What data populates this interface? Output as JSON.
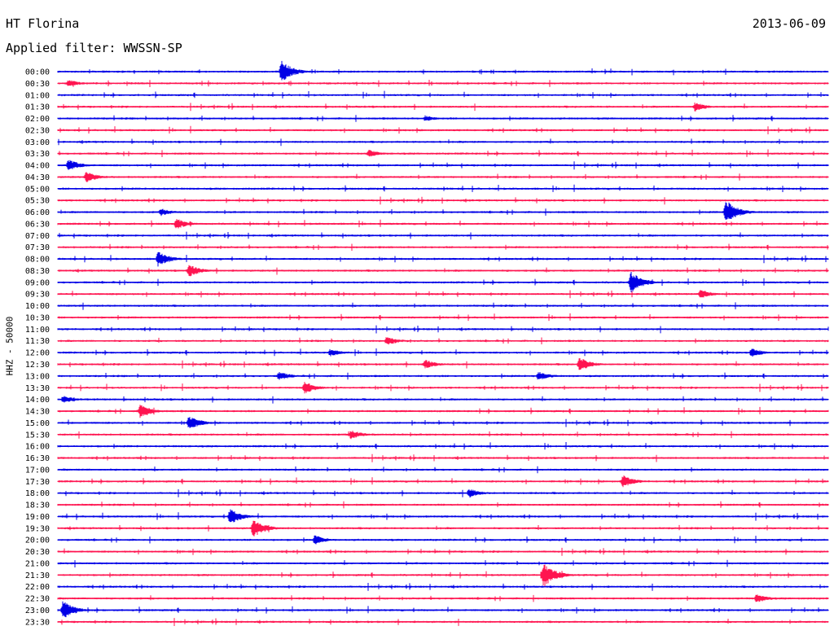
{
  "header": {
    "station": "HT Florina",
    "date": "2013-06-09",
    "filter": "Applied filter: WWSSN-SP"
  },
  "chart_data": {
    "type": "line",
    "title": "HT Florina",
    "ylabel": "HHZ - 50000",
    "row_labels": [
      "00:00",
      "00:30",
      "01:00",
      "01:30",
      "02:00",
      "02:30",
      "03:00",
      "03:30",
      "04:00",
      "04:30",
      "05:00",
      "05:30",
      "06:00",
      "06:30",
      "07:00",
      "07:30",
      "08:00",
      "08:30",
      "09:00",
      "09:30",
      "10:00",
      "10:30",
      "11:00",
      "11:30",
      "12:00",
      "12:30",
      "13:00",
      "13:30",
      "14:00",
      "14:30",
      "15:00",
      "15:30",
      "16:00",
      "16:30",
      "17:00",
      "17:30",
      "18:00",
      "18:30",
      "19:00",
      "19:30",
      "20:00",
      "20:30",
      "21:00",
      "21:30",
      "22:00",
      "22:30",
      "23:00",
      "23:30"
    ],
    "minutes_per_row": 30,
    "colors": [
      "#0000e6",
      "#ff1450"
    ],
    "grid": false,
    "legend": "none",
    "events": [
      {
        "row": 0,
        "minute": 8.7,
        "amplitude": 14
      },
      {
        "row": 1,
        "minute": 0.4,
        "amplitude": 5
      },
      {
        "row": 3,
        "minute": 24.8,
        "amplitude": 6
      },
      {
        "row": 4,
        "minute": 14.3,
        "amplitude": 4
      },
      {
        "row": 7,
        "minute": 12.1,
        "amplitude": 5
      },
      {
        "row": 8,
        "minute": 0.4,
        "amplitude": 8
      },
      {
        "row": 9,
        "minute": 1.1,
        "amplitude": 7
      },
      {
        "row": 12,
        "minute": 4.0,
        "amplitude": 5
      },
      {
        "row": 12,
        "minute": 26.0,
        "amplitude": 16
      },
      {
        "row": 13,
        "minute": 4.6,
        "amplitude": 7
      },
      {
        "row": 16,
        "minute": 3.9,
        "amplitude": 10
      },
      {
        "row": 17,
        "minute": 5.1,
        "amplitude": 8
      },
      {
        "row": 18,
        "minute": 22.3,
        "amplitude": 14
      },
      {
        "row": 19,
        "minute": 25.0,
        "amplitude": 6
      },
      {
        "row": 23,
        "minute": 12.8,
        "amplitude": 6
      },
      {
        "row": 24,
        "minute": 10.6,
        "amplitude": 5
      },
      {
        "row": 24,
        "minute": 27.0,
        "amplitude": 6
      },
      {
        "row": 25,
        "minute": 14.3,
        "amplitude": 6
      },
      {
        "row": 25,
        "minute": 20.3,
        "amplitude": 9
      },
      {
        "row": 26,
        "minute": 8.6,
        "amplitude": 6
      },
      {
        "row": 26,
        "minute": 18.7,
        "amplitude": 6
      },
      {
        "row": 27,
        "minute": 9.6,
        "amplitude": 8
      },
      {
        "row": 28,
        "minute": 0.2,
        "amplitude": 5
      },
      {
        "row": 29,
        "minute": 3.2,
        "amplitude": 9
      },
      {
        "row": 30,
        "minute": 5.1,
        "amplitude": 9
      },
      {
        "row": 31,
        "minute": 11.4,
        "amplitude": 6
      },
      {
        "row": 35,
        "minute": 22.0,
        "amplitude": 8
      },
      {
        "row": 36,
        "minute": 16.0,
        "amplitude": 6
      },
      {
        "row": 38,
        "minute": 6.7,
        "amplitude": 10
      },
      {
        "row": 39,
        "minute": 7.6,
        "amplitude": 12
      },
      {
        "row": 40,
        "minute": 10.0,
        "amplitude": 6
      },
      {
        "row": 43,
        "minute": 18.9,
        "amplitude": 16
      },
      {
        "row": 45,
        "minute": 27.2,
        "amplitude": 6
      },
      {
        "row": 46,
        "minute": 0.2,
        "amplitude": 12
      }
    ]
  }
}
